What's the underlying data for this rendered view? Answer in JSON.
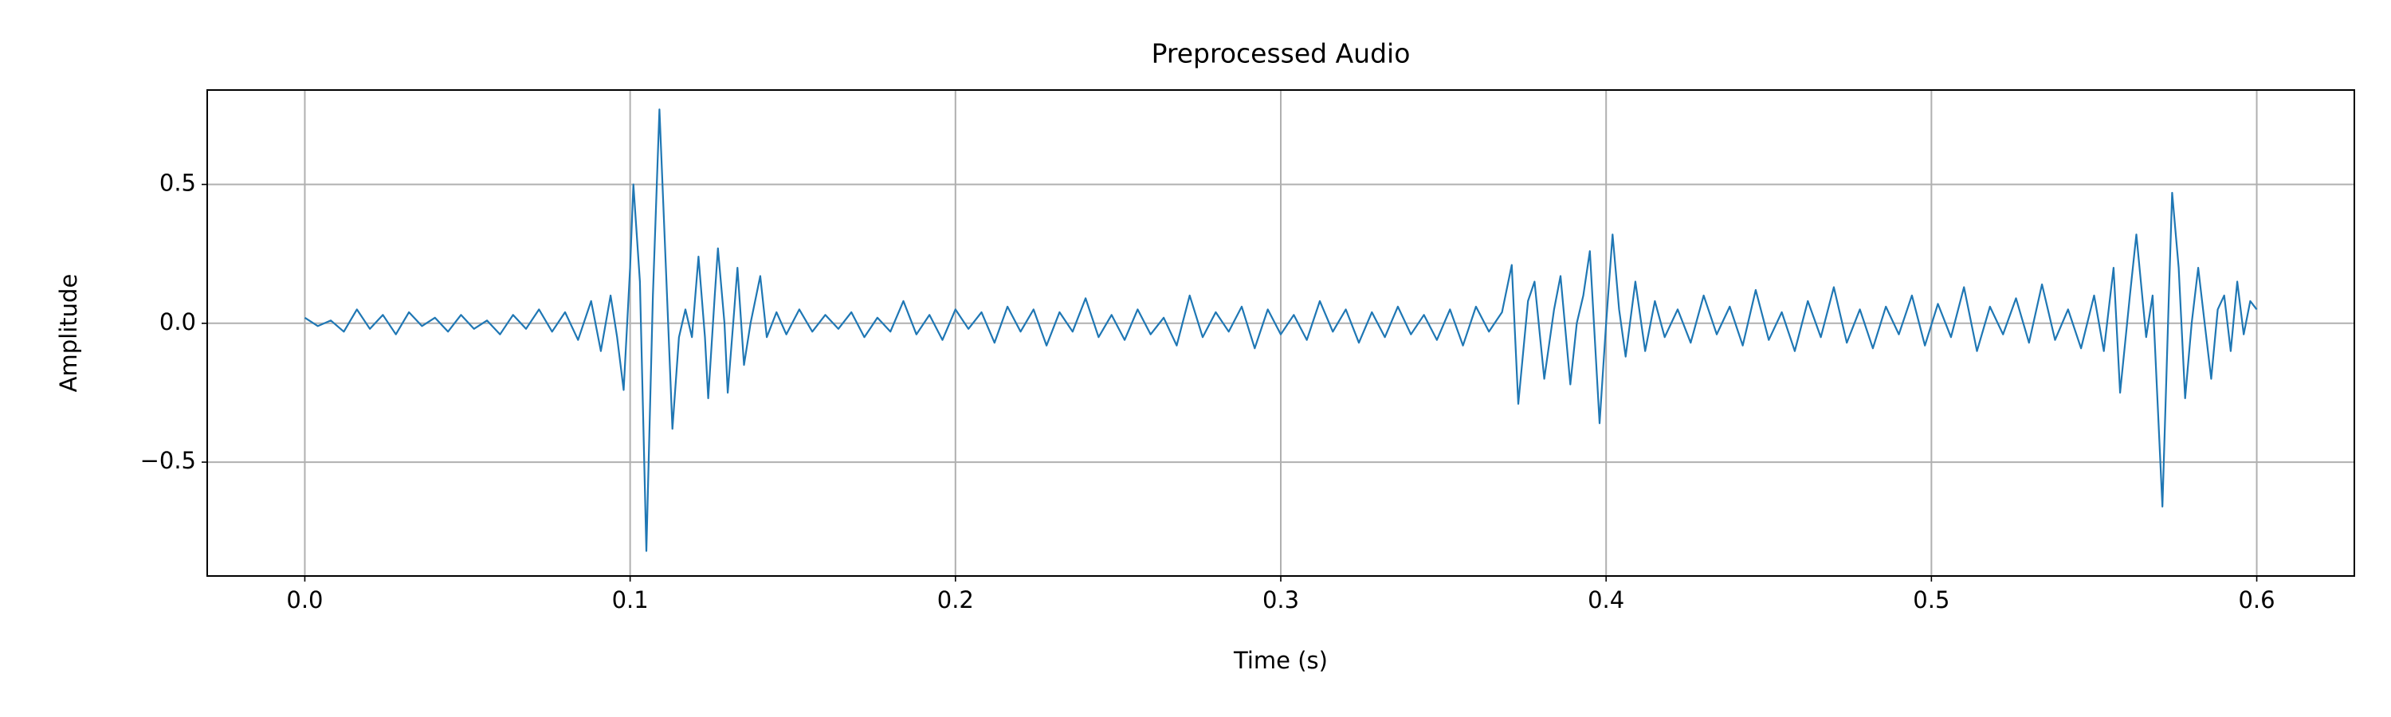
{
  "chart_data": {
    "type": "line",
    "title": "Preprocessed Audio",
    "xlabel": "Time (s)",
    "ylabel": "Amplitude",
    "color": "#1f77b4",
    "grid": true,
    "xlim": [
      -0.03,
      0.63
    ],
    "ylim": [
      -0.91,
      0.84
    ],
    "xticks": [
      {
        "value": 0,
        "label": "0.0"
      },
      0.1,
      0.2,
      0.3,
      0.4,
      0.5,
      0.6
    ],
    "yticks": [
      {
        "value": -0.5,
        "label": "−0.5"
      },
      {
        "value": 0,
        "label": "0.0"
      },
      0.5
    ],
    "x": [
      0,
      0.004,
      0.008,
      0.012,
      0.016,
      0.02,
      0.024,
      0.028,
      0.032,
      0.036,
      0.04,
      0.044,
      0.048,
      0.052,
      0.056,
      0.06,
      0.064,
      0.068,
      0.072,
      0.076,
      0.08,
      0.084,
      0.088,
      0.091,
      0.094,
      0.096,
      0.098,
      0.1,
      0.101,
      0.103,
      0.105,
      0.107,
      0.109,
      0.111,
      0.113,
      0.115,
      0.117,
      0.119,
      0.121,
      0.123,
      0.124,
      0.126,
      0.127,
      0.129,
      0.13,
      0.132,
      0.133,
      0.135,
      0.137,
      0.14,
      0.142,
      0.145,
      0.148,
      0.152,
      0.156,
      0.16,
      0.164,
      0.168,
      0.172,
      0.176,
      0.18,
      0.184,
      0.188,
      0.192,
      0.196,
      0.2,
      0.204,
      0.208,
      0.212,
      0.216,
      0.22,
      0.224,
      0.228,
      0.232,
      0.236,
      0.24,
      0.244,
      0.248,
      0.252,
      0.256,
      0.26,
      0.264,
      0.268,
      0.272,
      0.276,
      0.28,
      0.284,
      0.288,
      0.292,
      0.296,
      0.3,
      0.304,
      0.308,
      0.312,
      0.316,
      0.32,
      0.324,
      0.328,
      0.332,
      0.336,
      0.34,
      0.344,
      0.348,
      0.352,
      0.356,
      0.36,
      0.364,
      0.368,
      0.371,
      0.373,
      0.376,
      0.378,
      0.381,
      0.384,
      0.386,
      0.389,
      0.391,
      0.393,
      0.395,
      0.398,
      0.4,
      0.402,
      0.404,
      0.406,
      0.409,
      0.412,
      0.415,
      0.418,
      0.422,
      0.426,
      0.43,
      0.434,
      0.438,
      0.442,
      0.446,
      0.45,
      0.454,
      0.458,
      0.462,
      0.466,
      0.47,
      0.474,
      0.478,
      0.482,
      0.486,
      0.49,
      0.494,
      0.498,
      0.502,
      0.506,
      0.51,
      0.514,
      0.518,
      0.522,
      0.526,
      0.53,
      0.534,
      0.538,
      0.542,
      0.546,
      0.55,
      0.553,
      0.556,
      0.558,
      0.561,
      0.563,
      0.566,
      0.568,
      0.571,
      0.573,
      0.574,
      0.576,
      0.578,
      0.58,
      0.582,
      0.584,
      0.586,
      0.588,
      0.59,
      0.592,
      0.594,
      0.596,
      0.598,
      0.6
    ],
    "values": [
      0.02,
      -0.01,
      0.01,
      -0.03,
      0.05,
      -0.02,
      0.03,
      -0.04,
      0.04,
      -0.01,
      0.02,
      -0.03,
      0.03,
      -0.02,
      0.01,
      -0.04,
      0.03,
      -0.02,
      0.05,
      -0.03,
      0.04,
      -0.06,
      0.08,
      -0.1,
      0.1,
      -0.05,
      -0.24,
      0.2,
      0.5,
      0.15,
      -0.82,
      0.1,
      0.77,
      0.2,
      -0.38,
      -0.05,
      0.05,
      -0.05,
      0.24,
      -0.05,
      -0.27,
      0.1,
      0.27,
      0,
      -0.25,
      0.05,
      0.2,
      -0.15,
      0,
      0.17,
      -0.05,
      0.04,
      -0.04,
      0.05,
      -0.03,
      0.03,
      -0.02,
      0.04,
      -0.05,
      0.02,
      -0.03,
      0.08,
      -0.04,
      0.03,
      -0.06,
      0.05,
      -0.02,
      0.04,
      -0.07,
      0.06,
      -0.03,
      0.05,
      -0.08,
      0.04,
      -0.03,
      0.09,
      -0.05,
      0.03,
      -0.06,
      0.05,
      -0.04,
      0.02,
      -0.08,
      0.1,
      -0.05,
      0.04,
      -0.03,
      0.06,
      -0.09,
      0.05,
      -0.04,
      0.03,
      -0.06,
      0.08,
      -0.03,
      0.05,
      -0.07,
      0.04,
      -0.05,
      0.06,
      -0.04,
      0.03,
      -0.06,
      0.05,
      -0.08,
      0.06,
      -0.03,
      0.04,
      0.21,
      -0.29,
      0.08,
      0.15,
      -0.2,
      0.05,
      0.17,
      -0.22,
      0,
      0.1,
      0.26,
      -0.36,
      0,
      0.32,
      0.05,
      -0.12,
      0.15,
      -0.1,
      0.08,
      -0.05,
      0.05,
      -0.07,
      0.1,
      -0.04,
      0.06,
      -0.08,
      0.12,
      -0.06,
      0.04,
      -0.1,
      0.08,
      -0.05,
      0.13,
      -0.07,
      0.05,
      -0.09,
      0.06,
      -0.04,
      0.1,
      -0.08,
      0.07,
      -0.05,
      0.13,
      -0.1,
      0.06,
      -0.04,
      0.09,
      -0.07,
      0.14,
      -0.06,
      0.05,
      -0.09,
      0.1,
      -0.1,
      0.2,
      -0.25,
      0.1,
      0.32,
      -0.05,
      0.1,
      -0.66,
      0.1,
      0.47,
      0.2,
      -0.27,
      0,
      0.2,
      0,
      -0.2,
      0.05,
      0.1,
      -0.1,
      0.15,
      -0.04,
      0.08,
      0.05
    ]
  }
}
